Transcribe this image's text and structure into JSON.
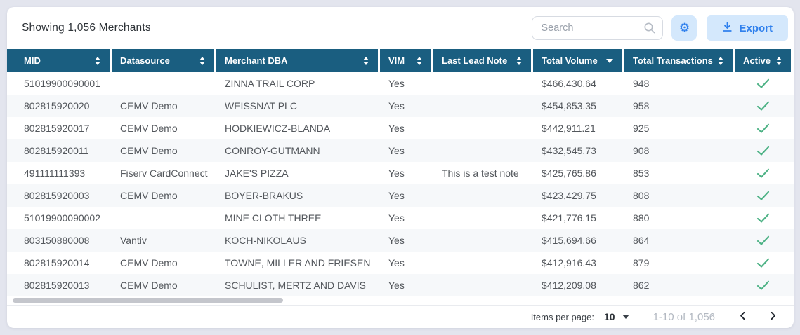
{
  "colors": {
    "accent": "#2f80ed",
    "accent_bg": "#d4e8fc",
    "header_teal": "#1a5e80",
    "check_green": "#4db285",
    "page_bg": "#e3e5ee"
  },
  "header": {
    "title": "Showing 1,056 Merchants",
    "search_placeholder": "Search",
    "search_icon": "magnifier",
    "settings_icon": "gear",
    "export_label": "Export",
    "export_icon": "download"
  },
  "table": {
    "columns": [
      {
        "label": "MID",
        "sort": "sortable"
      },
      {
        "label": "Datasource",
        "sort": "sortable"
      },
      {
        "label": "Merchant DBA",
        "sort": "sortable"
      },
      {
        "label": "VIM",
        "sort": "sortable"
      },
      {
        "label": "Last Lead Note",
        "sort": "sortable"
      },
      {
        "label": "Total Volume",
        "sort": "desc"
      },
      {
        "label": "Total Transactions",
        "sort": "sortable"
      },
      {
        "label": "Active",
        "sort": "sortable"
      }
    ],
    "rows": [
      {
        "mid": "51019900090001",
        "datasource": "",
        "merchant_dba": "ZINNA TRAIL CORP",
        "vim": "Yes",
        "last_lead_note": "",
        "total_volume": "$466,430.64",
        "total_transactions": "948",
        "active": true
      },
      {
        "mid": "802815920020",
        "datasource": "CEMV Demo",
        "merchant_dba": "WEISSNAT PLC",
        "vim": "Yes",
        "last_lead_note": "",
        "total_volume": "$454,853.35",
        "total_transactions": "958",
        "active": true
      },
      {
        "mid": "802815920017",
        "datasource": "CEMV Demo",
        "merchant_dba": "HODKIEWICZ-BLANDA",
        "vim": "Yes",
        "last_lead_note": "",
        "total_volume": "$442,911.21",
        "total_transactions": "925",
        "active": true
      },
      {
        "mid": "802815920011",
        "datasource": "CEMV Demo",
        "merchant_dba": "CONROY-GUTMANN",
        "vim": "Yes",
        "last_lead_note": "",
        "total_volume": "$432,545.73",
        "total_transactions": "908",
        "active": true
      },
      {
        "mid": "491111111393",
        "datasource": "Fiserv CardConnect",
        "merchant_dba": "JAKE'S PIZZA",
        "vim": "Yes",
        "last_lead_note": "This is a test note",
        "total_volume": "$425,765.86",
        "total_transactions": "853",
        "active": true
      },
      {
        "mid": "802815920003",
        "datasource": "CEMV Demo",
        "merchant_dba": "BOYER-BRAKUS",
        "vim": "Yes",
        "last_lead_note": "",
        "total_volume": "$423,429.75",
        "total_transactions": "808",
        "active": true
      },
      {
        "mid": "51019900090002",
        "datasource": "",
        "merchant_dba": "MINE CLOTH THREE",
        "vim": "Yes",
        "last_lead_note": "",
        "total_volume": "$421,776.15",
        "total_transactions": "880",
        "active": true
      },
      {
        "mid": "803150880008",
        "datasource": "Vantiv",
        "merchant_dba": "KOCH-NIKOLAUS",
        "vim": "Yes",
        "last_lead_note": "",
        "total_volume": "$415,694.66",
        "total_transactions": "864",
        "active": true
      },
      {
        "mid": "802815920014",
        "datasource": "CEMV Demo",
        "merchant_dba": "TOWNE, MILLER AND FRIESEN",
        "vim": "Yes",
        "last_lead_note": "",
        "total_volume": "$412,916.43",
        "total_transactions": "879",
        "active": true
      },
      {
        "mid": "802815920013",
        "datasource": "CEMV Demo",
        "merchant_dba": "SCHULIST, MERTZ AND DAVIS",
        "vim": "Yes",
        "last_lead_note": "",
        "total_volume": "$412,209.08",
        "total_transactions": "862",
        "active": true
      }
    ]
  },
  "footer": {
    "items_per_page_label": "Items per page:",
    "items_per_page_value": "10",
    "range": "1-10 of 1,056",
    "prev_icon": "chevron-left",
    "next_icon": "chevron-right"
  }
}
